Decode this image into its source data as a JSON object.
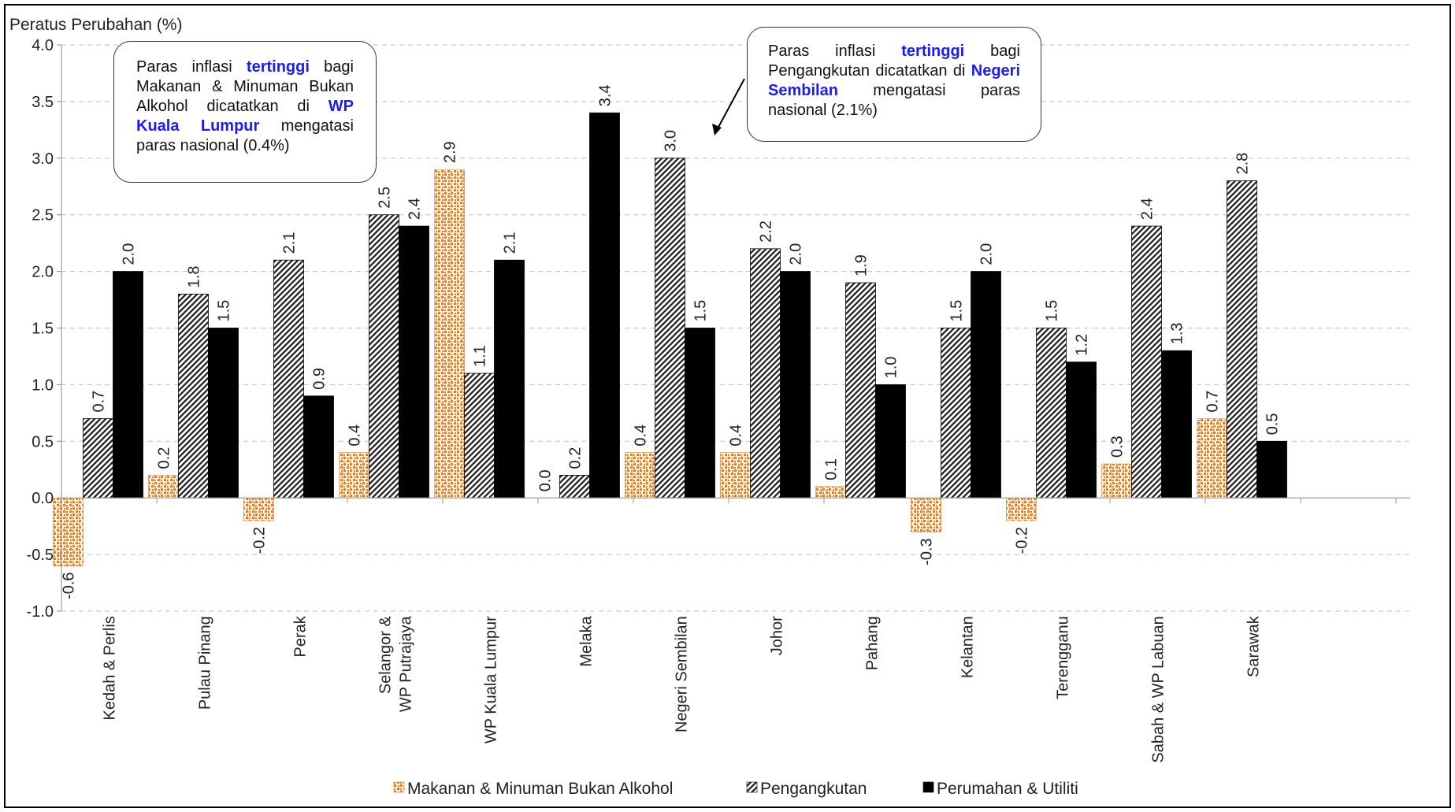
{
  "chart_data": {
    "type": "bar",
    "ylabel": "Peratus Perubahan (%)",
    "ylim": [
      -1.0,
      4.0
    ],
    "yticks": [
      "4.0",
      "3.5",
      "3.0",
      "2.5",
      "2.0",
      "1.5",
      "1.0",
      "0.5",
      "0.0",
      "-0.5",
      "-1.0"
    ],
    "grid": true,
    "legend_position": "bottom",
    "categories": [
      [
        "Kedah & Perlis"
      ],
      [
        "Pulau Pinang"
      ],
      [
        "Perak"
      ],
      [
        "Selangor &",
        "WP Putrajaya"
      ],
      [
        "WP Kuala Lumpur"
      ],
      [
        "Melaka"
      ],
      [
        "Negeri Sembilan"
      ],
      [
        "Johor"
      ],
      [
        "Pahang"
      ],
      [
        "Kelantan"
      ],
      [
        "Terengganu"
      ],
      [
        "Sabah & WP Labuan"
      ],
      [
        "Sarawak"
      ]
    ],
    "series": [
      {
        "name": "Makanan & Minuman Bukan Alkohol",
        "color": "#e8782a",
        "pattern": "orange-checker",
        "values": [
          -0.6,
          0.2,
          -0.2,
          0.4,
          2.9,
          0.0,
          0.4,
          0.4,
          0.1,
          -0.3,
          -0.2,
          0.3,
          0.7
        ],
        "labels": [
          "-0.6",
          "0.2",
          "-0.2",
          "0.4",
          "2.9",
          "0.0",
          "0.4",
          "0.4",
          "0.1",
          "-0.3",
          "-0.2",
          "0.3",
          "0.7"
        ]
      },
      {
        "name": "Pengangkutan",
        "color": "#333333",
        "pattern": "diagonal-hatch",
        "values": [
          0.7,
          1.8,
          2.1,
          2.5,
          1.1,
          0.2,
          3.0,
          2.2,
          1.9,
          1.5,
          1.5,
          2.4,
          2.8
        ],
        "labels": [
          "0.7",
          "1.8",
          "2.1",
          "2.5",
          "1.1",
          "0.2",
          "3.0",
          "2.2",
          "1.9",
          "1.5",
          "1.5",
          "2.4",
          "2.8"
        ]
      },
      {
        "name": "Perumahan & Utiliti",
        "color": "#000000",
        "pattern": "solid",
        "values": [
          2.0,
          1.5,
          0.9,
          2.4,
          2.1,
          3.4,
          1.5,
          2.0,
          1.0,
          2.0,
          1.2,
          1.3,
          0.5
        ],
        "labels": [
          "2.0",
          "1.5",
          "0.9",
          "2.4",
          "2.1",
          "3.4",
          "1.5",
          "2.0",
          "1.0",
          "2.0",
          "1.2",
          "1.3",
          "0.5"
        ]
      }
    ],
    "annotations": [
      {
        "segments": [
          {
            "text": "Paras inflasi ",
            "highlight": false
          },
          {
            "text": "tertinggi",
            "highlight": true
          },
          {
            "text": " bagi Makanan & Minuman Bukan Alkohol dicatatkan di ",
            "highlight": false
          },
          {
            "text": "WP Kuala Lumpur",
            "highlight": true
          },
          {
            "text": " mengatasi paras nasional (0.4%)",
            "highlight": false
          }
        ]
      },
      {
        "segments": [
          {
            "text": "Paras inflasi ",
            "highlight": false
          },
          {
            "text": "tertinggi",
            "highlight": true
          },
          {
            "text": " bagi Pengangkutan dicatatkan di ",
            "highlight": false
          },
          {
            "text": "Negeri Sembilan",
            "highlight": true
          },
          {
            "text": " mengatasi paras nasional (2.1%)",
            "highlight": false
          }
        ]
      }
    ]
  }
}
